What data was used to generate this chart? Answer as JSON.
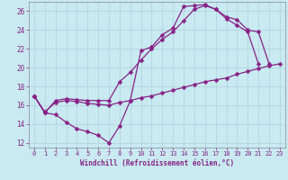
{
  "xlabel": "Windchill (Refroidissement éolien,°C)",
  "bg_color": "#c8eaf0",
  "line_color": "#882288",
  "grid_color": "#b0d0dc",
  "tick_color": "#882288",
  "label_color": "#882288",
  "xlim": [
    -0.5,
    23.5
  ],
  "ylim": [
    11.5,
    27.0
  ],
  "yticks": [
    12,
    14,
    16,
    18,
    20,
    22,
    24,
    26
  ],
  "xticks": [
    0,
    1,
    2,
    3,
    4,
    5,
    6,
    7,
    8,
    9,
    10,
    11,
    12,
    13,
    14,
    15,
    16,
    17,
    18,
    19,
    20,
    21,
    22,
    23
  ],
  "curve1_x": [
    0,
    1,
    2,
    3,
    4,
    5,
    6,
    7,
    8,
    9,
    10,
    11,
    12,
    13,
    14,
    15,
    16,
    17,
    18,
    19,
    20,
    21
  ],
  "curve1_y": [
    17.0,
    15.2,
    15.0,
    14.2,
    13.5,
    13.2,
    12.8,
    12.0,
    13.8,
    16.5,
    21.8,
    22.2,
    23.5,
    24.2,
    26.5,
    26.6,
    26.7,
    26.2,
    25.2,
    24.5,
    23.8,
    20.4
  ],
  "curve2_x": [
    0,
    1,
    2,
    3,
    4,
    5,
    6,
    7,
    8,
    9,
    10,
    11,
    12,
    13,
    14,
    15,
    16,
    17,
    18,
    19,
    20,
    21,
    22
  ],
  "curve2_y": [
    17.0,
    15.2,
    16.5,
    16.7,
    16.6,
    16.5,
    16.5,
    16.5,
    18.5,
    19.5,
    20.8,
    22.0,
    23.0,
    23.8,
    25.0,
    26.2,
    26.6,
    26.2,
    25.4,
    25.1,
    24.0,
    23.8,
    20.4
  ],
  "curve3_x": [
    0,
    1,
    2,
    3,
    4,
    5,
    6,
    7,
    8,
    9,
    10,
    11,
    12,
    13,
    14,
    15,
    16,
    17,
    18,
    19,
    20,
    21,
    22,
    23
  ],
  "curve3_y": [
    17.0,
    15.3,
    16.3,
    16.5,
    16.4,
    16.2,
    16.1,
    16.0,
    16.3,
    16.5,
    16.8,
    17.0,
    17.3,
    17.6,
    17.9,
    18.2,
    18.5,
    18.7,
    18.9,
    19.3,
    19.6,
    19.9,
    20.2,
    20.4
  ]
}
